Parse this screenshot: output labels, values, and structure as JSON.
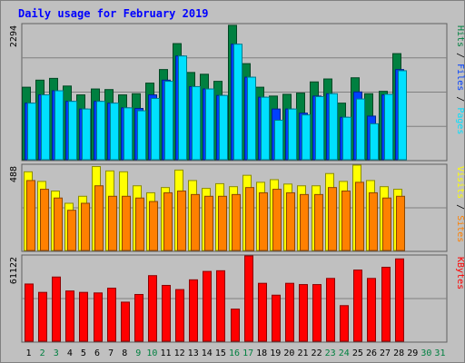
{
  "chart_data": {
    "type": "bar",
    "title": "Daily usage for February 2019",
    "categories": [
      "1",
      "2",
      "3",
      "4",
      "5",
      "6",
      "7",
      "8",
      "9",
      "10",
      "11",
      "12",
      "13",
      "14",
      "15",
      "16",
      "17",
      "18",
      "19",
      "20",
      "21",
      "22",
      "23",
      "24",
      "25",
      "26",
      "27",
      "28",
      "29",
      "30",
      "31"
    ],
    "weekend_days": [
      2,
      3,
      9,
      10,
      16,
      17,
      23,
      24,
      30,
      31
    ],
    "panels": [
      {
        "id": "hits-files-pages",
        "max_label": "2294",
        "ylim": [
          0,
          2294
        ],
        "legend": [
          {
            "name": "Pages",
            "color": "#00E0FF"
          },
          {
            "name": "Files",
            "color": "#0040FF"
          },
          {
            "name": "Hits",
            "color": "#008040"
          }
        ],
        "series": [
          {
            "name": "Hits",
            "values": [
              1230,
              1350,
              1380,
              1250,
              1100,
              1200,
              1190,
              1100,
              1120,
              1300,
              1530,
              1970,
              1480,
              1450,
              1330,
              2280,
              1630,
              1230,
              1080,
              1110,
              1130,
              1320,
              1370,
              960,
              1390,
              1120,
              1160,
              1800
            ]
          },
          {
            "name": "Files",
            "values": [
              960,
              1100,
              1170,
              990,
              860,
              990,
              960,
              880,
              870,
              1100,
              1350,
              1760,
              1240,
              1200,
              1090,
              1960,
              1400,
              1060,
              860,
              860,
              790,
              1080,
              1120,
              720,
              1150,
              740,
              1100,
              1530
            ]
          },
          {
            "name": "Pages",
            "values": [
              960,
              1100,
              1170,
              990,
              860,
              990,
              960,
              880,
              830,
              1040,
              1330,
              1760,
              1240,
              1200,
              1090,
              1960,
              1400,
              1060,
              670,
              860,
              760,
              1070,
              1120,
              720,
              1030,
              610,
              1110,
              1510
            ]
          }
        ]
      },
      {
        "id": "visits-sites",
        "max_label": "488",
        "ylim": [
          0,
          488
        ],
        "legend": [
          {
            "name": "Sites",
            "color": "#FF8000"
          },
          {
            "name": "Visits",
            "color": "#FFFF00"
          }
        ],
        "series": [
          {
            "name": "Visits",
            "values": [
              450,
              395,
              340,
              270,
              310,
              480,
              455,
              450,
              370,
              330,
              360,
              460,
              400,
              355,
              382,
              365,
              430,
              390,
              405,
              380,
              370,
              370,
              440,
              395,
              488,
              400,
              365,
              350
            ]
          },
          {
            "name": "Sites",
            "values": [
              400,
              350,
              300,
              230,
              270,
              370,
              310,
              310,
              300,
              280,
              330,
              340,
              320,
              310,
              310,
              320,
              360,
              330,
              350,
              330,
              320,
              320,
              360,
              340,
              390,
              330,
              300,
              310
            ]
          }
        ]
      },
      {
        "id": "kbytes",
        "max_label": "61122",
        "ylim": [
          0,
          61122
        ],
        "legend": [
          {
            "name": "KBytes",
            "color": "#FF0000"
          }
        ],
        "series": [
          {
            "name": "KBytes",
            "values": [
              41000,
              35000,
              46000,
              36000,
              35000,
              34600,
              38000,
              28000,
              33500,
              47000,
              40000,
              37000,
              44000,
              50000,
              50500,
              23000,
              61122,
              41500,
              33000,
              41500,
              40600,
              40600,
              45000,
              25500,
              51000,
              45000,
              53000,
              59000
            ]
          }
        ]
      }
    ]
  }
}
